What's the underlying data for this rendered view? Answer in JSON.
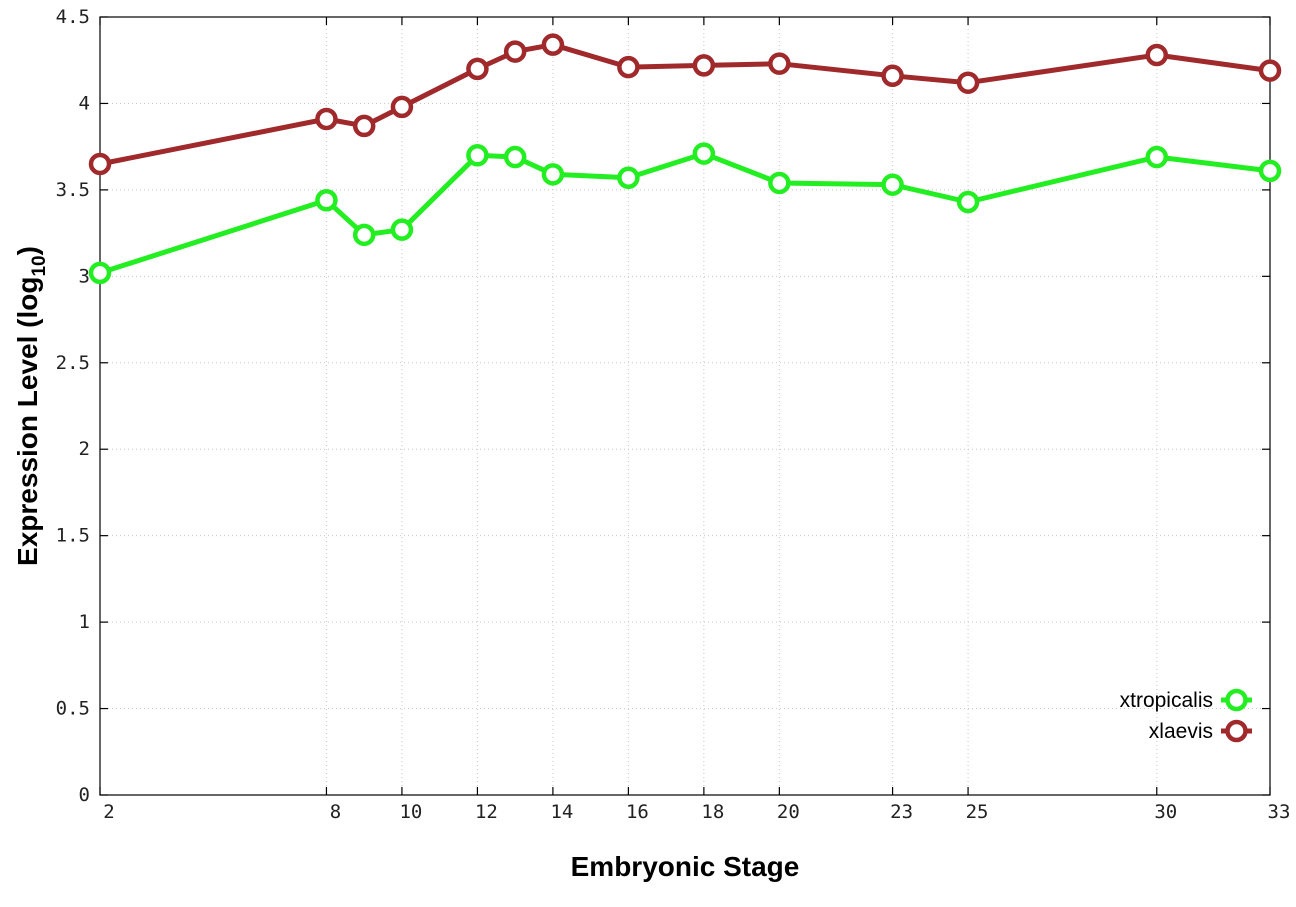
{
  "chart_data": {
    "type": "line",
    "x": [
      2,
      8,
      9,
      10,
      12,
      13,
      14,
      16,
      18,
      20,
      23,
      25,
      30,
      33
    ],
    "x_ticks": [
      2,
      8,
      10,
      12,
      14,
      16,
      18,
      20,
      23,
      25,
      30,
      33
    ],
    "xlim": [
      2,
      33
    ],
    "ylim": [
      0,
      4.5
    ],
    "y_ticks": [
      "0",
      "0.5",
      "1",
      "1.5",
      "2",
      "2.5",
      "3",
      "3.5",
      "4",
      "4.5"
    ],
    "xlabel": "Embryonic Stage",
    "ylabel": "Expression Level (log",
    "ylabel_sub": "10",
    "ylabel_end": ")",
    "grid": true,
    "legend_position": "bottom-right",
    "series": [
      {
        "name": "xtropicalis",
        "color": "#22ee22",
        "values": [
          3.02,
          3.44,
          3.24,
          3.27,
          3.7,
          3.69,
          3.59,
          3.57,
          3.71,
          3.54,
          3.53,
          3.43,
          3.69,
          3.61
        ]
      },
      {
        "name": "xlaevis",
        "color": "#a0292b",
        "values": [
          3.65,
          3.91,
          3.87,
          3.98,
          4.2,
          4.3,
          4.34,
          4.21,
          4.22,
          4.23,
          4.16,
          4.12,
          4.28,
          4.19
        ]
      }
    ]
  }
}
